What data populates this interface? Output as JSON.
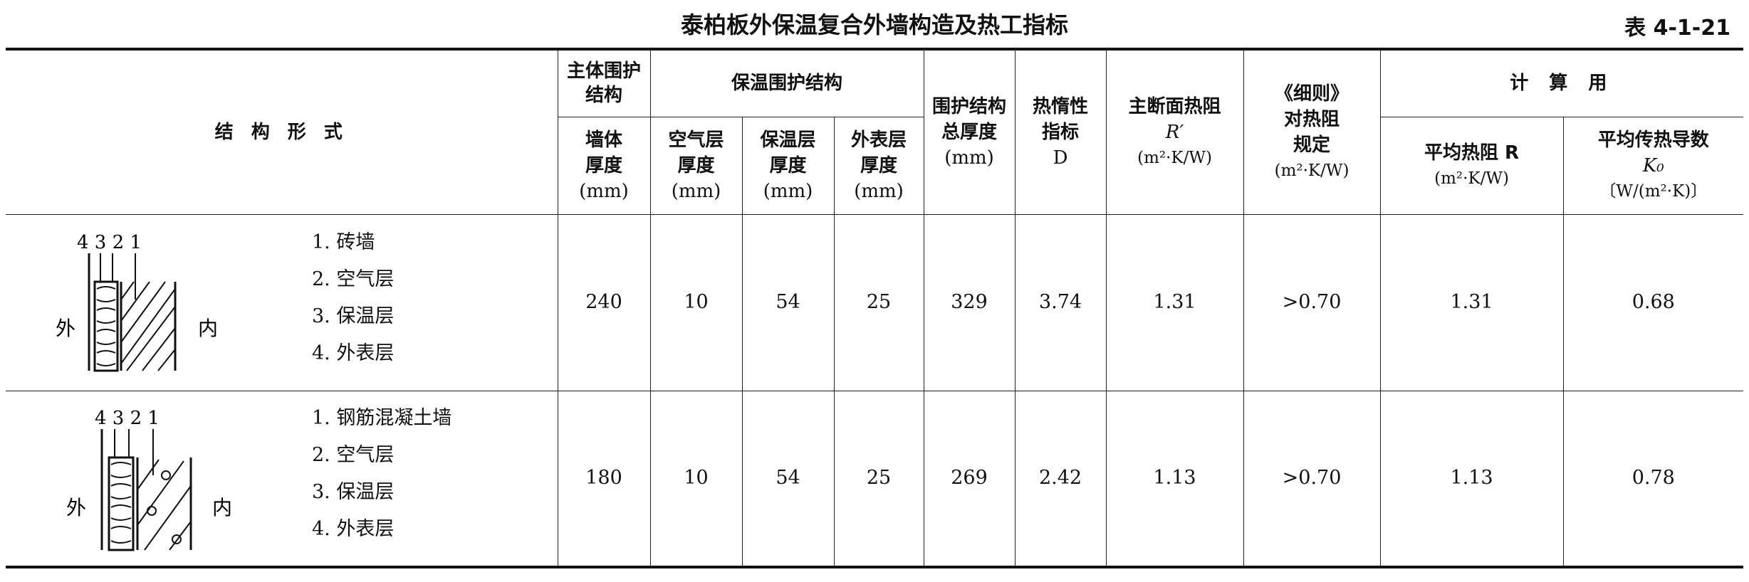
{
  "title": "泰柏板外保温复合外墙构造及热工指标",
  "table_number": "表 4-1-21",
  "headers": {
    "structure_form": "结 构 形 式",
    "main_envelope": "主体围护结构",
    "insulation_envelope": "保温围护结构",
    "wall_thickness": [
      "墙体",
      "厚度",
      "(mm)"
    ],
    "air_layer_thickness": [
      "空气层",
      "厚度",
      "(mm)"
    ],
    "insulation_thickness": [
      "保温层",
      "厚度",
      "(mm)"
    ],
    "outer_layer_thickness": [
      "外表层",
      "厚度",
      "(mm)"
    ],
    "total_thickness": [
      "围护结构",
      "总厚度",
      "(mm)"
    ],
    "thermal_inertia": [
      "热惰性",
      "指标",
      "D"
    ],
    "main_section_resistance": [
      "主断面热阻",
      "R′",
      "(m²·K/W)"
    ],
    "rules_resistance": [
      "《细则》",
      "对热阻",
      "规定",
      "(m²·K/W)"
    ],
    "calculation": "计 算 用",
    "avg_resistance": [
      "平均热阻 R",
      "(m²·K/W)"
    ],
    "avg_transfer": [
      "平均传热导数",
      "K₀",
      "〔W/(m²·K)〕"
    ]
  },
  "diagram_labels": {
    "outside": "外",
    "inside": "内",
    "numbers": "4 3 2  1"
  },
  "rows": [
    {
      "layers": [
        "1. 砖墙",
        "2. 空气层",
        "3. 保温层",
        "4. 外表层"
      ],
      "wall": "240",
      "air": "10",
      "insulation": "54",
      "outer": "25",
      "total": "329",
      "D": "3.74",
      "R_prime": "1.31",
      "rule": ">0.70",
      "R_avg": "1.31",
      "K0": "0.68"
    },
    {
      "layers": [
        "1. 钢筋混凝土墙",
        "2. 空气层",
        "3. 保温层",
        "4. 外表层"
      ],
      "wall": "180",
      "air": "10",
      "insulation": "54",
      "outer": "25",
      "total": "269",
      "D": "2.42",
      "R_prime": "1.13",
      "rule": ">0.70",
      "R_avg": "1.13",
      "K0": "0.78"
    }
  ]
}
